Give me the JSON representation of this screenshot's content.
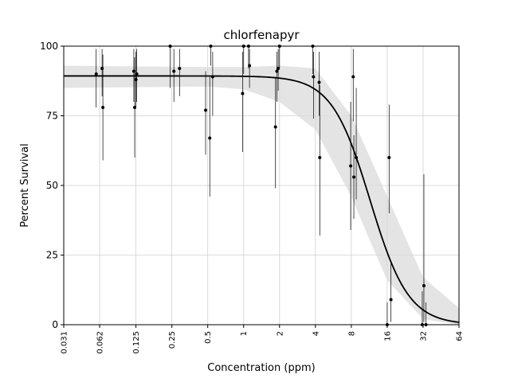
{
  "chart_data": {
    "type": "scatter",
    "title": "chlorfenapyr",
    "xlabel": "Concentration (ppm)",
    "ylabel": "Percent Survival",
    "x_scale": "log2",
    "xlim": [
      0.031,
      64
    ],
    "ylim": [
      0,
      100
    ],
    "x_tick_values": [
      0.031,
      0.062,
      0.125,
      0.25,
      0.5,
      1,
      2,
      4,
      8,
      16,
      32,
      64
    ],
    "x_tick_labels": [
      "0.031",
      "0.062",
      "0.125",
      "0.25",
      "0.5",
      "1",
      "2",
      "4",
      "8",
      "16",
      "32",
      "64"
    ],
    "y_tick_values": [
      0,
      25,
      50,
      75,
      100
    ],
    "y_tick_labels": [
      "0",
      "25",
      "50",
      "75",
      "100"
    ],
    "grid": true,
    "colors": {
      "points": "#000000",
      "curve": "#000000",
      "band": "#d9d9d9",
      "grid": "#d0d0d0"
    },
    "fit_curve": {
      "top": 89.3,
      "ec50": 11.5,
      "hill": 2.7
    },
    "band": [
      {
        "x": 0.031,
        "lower": 85,
        "upper": 93
      },
      {
        "x": 0.5,
        "lower": 85.5,
        "upper": 92.5
      },
      {
        "x": 1,
        "lower": 84.5,
        "upper": 92.5
      },
      {
        "x": 2,
        "lower": 80,
        "upper": 93
      },
      {
        "x": 4,
        "lower": 70,
        "upper": 92
      },
      {
        "x": 8,
        "lower": 46,
        "upper": 75
      },
      {
        "x": 11.5,
        "lower": 30,
        "upper": 60
      },
      {
        "x": 16,
        "lower": 16,
        "upper": 46
      },
      {
        "x": 32,
        "lower": 2,
        "upper": 17
      },
      {
        "x": 64,
        "lower": 0,
        "upper": 6
      }
    ],
    "points": [
      {
        "x": 0.058,
        "y": 90,
        "err_low": 78,
        "err_high": 99
      },
      {
        "x": 0.065,
        "y": 92,
        "err_low": 82,
        "err_high": 99
      },
      {
        "x": 0.066,
        "y": 78,
        "err_low": 59,
        "err_high": 97
      },
      {
        "x": 0.12,
        "y": 91,
        "err_low": 80,
        "err_high": 99
      },
      {
        "x": 0.122,
        "y": 78,
        "err_low": 60,
        "err_high": 96
      },
      {
        "x": 0.125,
        "y": 88,
        "err_low": 78,
        "err_high": 98
      },
      {
        "x": 0.127,
        "y": 90,
        "err_low": 80,
        "err_high": 99
      },
      {
        "x": 0.242,
        "y": 100,
        "err_low": 85,
        "err_high": 100
      },
      {
        "x": 0.26,
        "y": 91,
        "err_low": 80,
        "err_high": 99
      },
      {
        "x": 0.29,
        "y": 92,
        "err_low": 82,
        "err_high": 99
      },
      {
        "x": 0.48,
        "y": 77,
        "err_low": 61,
        "err_high": 91
      },
      {
        "x": 0.52,
        "y": 67,
        "err_low": 46,
        "err_high": 89
      },
      {
        "x": 0.53,
        "y": 100,
        "err_low": 93,
        "err_high": 100
      },
      {
        "x": 0.55,
        "y": 89,
        "err_low": 75,
        "err_high": 98
      },
      {
        "x": 0.98,
        "y": 83,
        "err_low": 62,
        "err_high": 98
      },
      {
        "x": 1.0,
        "y": 100,
        "err_low": 90,
        "err_high": 100
      },
      {
        "x": 1.1,
        "y": 100,
        "err_low": 92,
        "err_high": 100
      },
      {
        "x": 1.12,
        "y": 93,
        "err_low": 85,
        "err_high": 99
      },
      {
        "x": 1.85,
        "y": 71,
        "err_low": 49,
        "err_high": 89
      },
      {
        "x": 1.9,
        "y": 91,
        "err_low": 80,
        "err_high": 98
      },
      {
        "x": 1.95,
        "y": 92,
        "err_low": 84,
        "err_high": 99
      },
      {
        "x": 2.0,
        "y": 100,
        "err_low": 92,
        "err_high": 100
      },
      {
        "x": 3.8,
        "y": 100,
        "err_low": 90,
        "err_high": 100
      },
      {
        "x": 3.85,
        "y": 89,
        "err_low": 74,
        "err_high": 98
      },
      {
        "x": 4.3,
        "y": 87,
        "err_low": 75,
        "err_high": 98
      },
      {
        "x": 4.35,
        "y": 60,
        "err_low": 32,
        "err_high": 86
      },
      {
        "x": 7.9,
        "y": 57,
        "err_low": 34,
        "err_high": 80
      },
      {
        "x": 8.3,
        "y": 89,
        "err_low": 73,
        "err_high": 99
      },
      {
        "x": 8.4,
        "y": 53,
        "err_low": 38,
        "err_high": 68
      },
      {
        "x": 8.8,
        "y": 60,
        "err_low": 45,
        "err_high": 85
      },
      {
        "x": 16.0,
        "y": 0,
        "err_low": 0,
        "err_high": 8
      },
      {
        "x": 16.6,
        "y": 60,
        "err_low": 40,
        "err_high": 79
      },
      {
        "x": 17.2,
        "y": 9,
        "err_low": 1,
        "err_high": 22
      },
      {
        "x": 31.5,
        "y": 0,
        "err_low": 0,
        "err_high": 12
      },
      {
        "x": 32.5,
        "y": 14,
        "err_low": 1,
        "err_high": 54
      },
      {
        "x": 33.8,
        "y": 0,
        "err_low": 0,
        "err_high": 8
      }
    ]
  }
}
